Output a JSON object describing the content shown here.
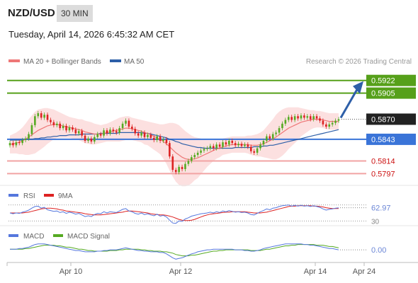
{
  "header": {
    "pair": "NZD/USD",
    "timeframe": "30 MIN",
    "datetime": "Tuesday, April 14, 2026 6:45:32 AM CET"
  },
  "legend_main": {
    "ma20": "MA 20 + Bollinger Bands",
    "ma50": "MA 50",
    "ma20_color": "#ee7777",
    "ma50_color": "#2d5fa8",
    "credit": "Research © 2026 Trading Central"
  },
  "legend_rsi": {
    "rsi": "RSI",
    "ma9": "9MA",
    "rsi_color": "#5577dd",
    "ma9_color": "#dd2222"
  },
  "legend_macd": {
    "macd": "MACD",
    "signal": "MACD Signal",
    "macd_color": "#5577dd",
    "signal_color": "#55aa22"
  },
  "colors": {
    "resistance": "#56a01a",
    "pivot": "#3a74d8",
    "support": "#f2a3a3",
    "support_label": "#cc1111",
    "arrow": "#2e5fa8",
    "candle_up": "#55aa22",
    "candle_down": "#dd2222",
    "band_fill": "#fbd6d6",
    "last_price_bg": "#222222"
  },
  "chart_data": [
    {
      "type": "candlestick",
      "title": "NZD/USD",
      "timeframe": "30 MIN",
      "x_ticks": [
        "Apr 10",
        "Apr 12",
        "Apr 14",
        "Apr 24"
      ],
      "ylim": [
        0.5785,
        0.5935
      ],
      "last_price": 0.587,
      "levels": {
        "resistance": [
          0.5922,
          0.5905
        ],
        "pivot": 0.5843,
        "support": [
          0.5814,
          0.5797
        ]
      },
      "close": [
        0.5838,
        0.5835,
        0.5839,
        0.5838,
        0.5842,
        0.5844,
        0.585,
        0.5862,
        0.5874,
        0.5878,
        0.5872,
        0.5876,
        0.5869,
        0.5866,
        0.5862,
        0.5864,
        0.5858,
        0.5861,
        0.5855,
        0.5859,
        0.5856,
        0.5851,
        0.5854,
        0.5848,
        0.5841,
        0.5844,
        0.584,
        0.5846,
        0.585,
        0.5848,
        0.5855,
        0.5851,
        0.5856,
        0.5854,
        0.5852,
        0.5858,
        0.5864,
        0.5868,
        0.586,
        0.5857,
        0.5851,
        0.5848,
        0.5852,
        0.5846,
        0.5849,
        0.5845,
        0.5842,
        0.5847,
        0.5841,
        0.5843,
        0.5838,
        0.582,
        0.5802,
        0.5799,
        0.5806,
        0.5803,
        0.581,
        0.5814,
        0.5819,
        0.5822,
        0.5825,
        0.5828,
        0.583,
        0.5831,
        0.5834,
        0.5831,
        0.5836,
        0.5833,
        0.5839,
        0.5836,
        0.5841,
        0.5838,
        0.5835,
        0.5837,
        0.5834,
        0.5836,
        0.5833,
        0.5827,
        0.5825,
        0.5831,
        0.5836,
        0.5841,
        0.5847,
        0.5844,
        0.585,
        0.5852,
        0.5858,
        0.5864,
        0.5869,
        0.5873,
        0.5869,
        0.5874,
        0.5871,
        0.5875,
        0.5872,
        0.5874,
        0.587,
        0.5874,
        0.5871,
        0.5868,
        0.5863,
        0.586,
        0.5863,
        0.5865,
        0.5868,
        0.587
      ],
      "ma20": [
        0.5836,
        0.5837,
        0.5838,
        0.5839,
        0.5841,
        0.5843,
        0.5846,
        0.5849,
        0.5852,
        0.5855,
        0.5857,
        0.5859,
        0.5861,
        0.5862,
        0.5863,
        0.5863,
        0.5862,
        0.5861,
        0.586,
        0.5859,
        0.5858,
        0.5857,
        0.5856,
        0.5855,
        0.5853,
        0.5852,
        0.5851,
        0.585,
        0.585,
        0.585,
        0.5851,
        0.5852,
        0.5853,
        0.5854,
        0.5855,
        0.5856,
        0.5857,
        0.5858,
        0.5858,
        0.5857,
        0.5856,
        0.5855,
        0.5854,
        0.5852,
        0.5851,
        0.5849,
        0.5847,
        0.5845,
        0.5843,
        0.584,
        0.5837,
        0.5833,
        0.5829,
        0.5825,
        0.5822,
        0.5819,
        0.5817,
        0.5816,
        0.5816,
        0.5817,
        0.5818,
        0.582,
        0.5822,
        0.5824,
        0.5826,
        0.5828,
        0.583,
        0.5831,
        0.5833,
        0.5834,
        0.5835,
        0.5836,
        0.5836,
        0.5836,
        0.5836,
        0.5836,
        0.5836,
        0.5835,
        0.5835,
        0.5835,
        0.5836,
        0.5837,
        0.5839,
        0.5841,
        0.5843,
        0.5846,
        0.5849,
        0.5852,
        0.5855,
        0.5858,
        0.586,
        0.5862,
        0.5864,
        0.5866,
        0.5867,
        0.5868,
        0.5869,
        0.587,
        0.587,
        0.587,
        0.5869,
        0.5868,
        0.5867,
        0.5867,
        0.5867,
        0.5867
      ],
      "ma50": [
        0.5842,
        0.5842,
        0.5842,
        0.5842,
        0.5842,
        0.5843,
        0.5843,
        0.5843,
        0.5844,
        0.5844,
        0.5845,
        0.5845,
        0.5846,
        0.5846,
        0.5847,
        0.5847,
        0.5848,
        0.5848,
        0.5848,
        0.5849,
        0.5849,
        0.5849,
        0.5849,
        0.585,
        0.585,
        0.585,
        0.585,
        0.585,
        0.585,
        0.5851,
        0.5851,
        0.5851,
        0.5851,
        0.5851,
        0.5851,
        0.5852,
        0.5852,
        0.5852,
        0.5852,
        0.5852,
        0.5852,
        0.5852,
        0.5852,
        0.5851,
        0.5851,
        0.585,
        0.5849,
        0.5848,
        0.5847,
        0.5846,
        0.5845,
        0.5843,
        0.5842,
        0.584,
        0.5839,
        0.5837,
        0.5836,
        0.5835,
        0.5834,
        0.5833,
        0.5832,
        0.5832,
        0.5831,
        0.5831,
        0.5831,
        0.5831,
        0.5831,
        0.5831,
        0.5831,
        0.5831,
        0.5831,
        0.5831,
        0.5832,
        0.5832,
        0.5832,
        0.5832,
        0.5832,
        0.5832,
        0.5833,
        0.5833,
        0.5833,
        0.5834,
        0.5834,
        0.5835,
        0.5835,
        0.5836,
        0.5837,
        0.5838,
        0.5839,
        0.584,
        0.5841,
        0.5842,
        0.5843,
        0.5844,
        0.5845,
        0.5846,
        0.5847,
        0.5848,
        0.5849,
        0.585,
        0.5851,
        0.5852,
        0.5853,
        0.5854,
        0.5855,
        0.5856
      ],
      "bb_width": [
        0.0012,
        0.0013,
        0.0014,
        0.0016,
        0.0018,
        0.0021,
        0.0024,
        0.0026,
        0.0028,
        0.0028,
        0.0027,
        0.0026,
        0.0024,
        0.0022,
        0.002,
        0.0018,
        0.0017,
        0.0016,
        0.0015,
        0.0014,
        0.0014,
        0.0014,
        0.0014,
        0.0015,
        0.0015,
        0.0015,
        0.0015,
        0.0014,
        0.0013,
        0.0012,
        0.0012,
        0.0012,
        0.0013,
        0.0014,
        0.0015,
        0.0016,
        0.0016,
        0.0016,
        0.0016,
        0.0015,
        0.0015,
        0.0015,
        0.0015,
        0.0016,
        0.0016,
        0.0017,
        0.0018,
        0.0019,
        0.002,
        0.0023,
        0.0027,
        0.0032,
        0.0036,
        0.0039,
        0.004,
        0.0039,
        0.0037,
        0.0035,
        0.0032,
        0.0029,
        0.0027,
        0.0024,
        0.0021,
        0.0018,
        0.0016,
        0.0014,
        0.0013,
        0.0012,
        0.0011,
        0.0011,
        0.0011,
        0.0011,
        0.0011,
        0.0011,
        0.0011,
        0.0011,
        0.0012,
        0.0013,
        0.0014,
        0.0015,
        0.0016,
        0.0018,
        0.0021,
        0.0024,
        0.0027,
        0.003,
        0.0031,
        0.0031,
        0.003,
        0.0028,
        0.0026,
        0.0024,
        0.0022,
        0.0019,
        0.0017,
        0.0015,
        0.0013,
        0.0012,
        0.0011,
        0.0011,
        0.0011,
        0.0011,
        0.0011,
        0.0011,
        0.0011,
        0.0011
      ]
    },
    {
      "type": "line",
      "name": "RSI",
      "last_value": 62.97,
      "reference_levels": [
        70,
        30
      ],
      "ylim": [
        20,
        80
      ],
      "rsi": [
        50,
        48,
        50,
        49,
        52,
        54,
        57,
        62,
        66,
        67,
        62,
        64,
        58,
        56,
        54,
        55,
        51,
        53,
        49,
        52,
        50,
        47,
        49,
        45,
        41,
        43,
        41,
        46,
        49,
        48,
        53,
        50,
        53,
        52,
        51,
        55,
        59,
        61,
        55,
        53,
        49,
        47,
        50,
        46,
        48,
        45,
        43,
        47,
        42,
        44,
        40,
        32,
        25,
        24,
        30,
        29,
        35,
        38,
        42,
        44,
        46,
        48,
        49,
        50,
        52,
        50,
        53,
        51,
        55,
        53,
        56,
        54,
        52,
        53,
        51,
        52,
        50,
        46,
        45,
        49,
        53,
        56,
        60,
        58,
        62,
        63,
        66,
        68,
        69,
        70,
        67,
        69,
        67,
        69,
        67,
        68,
        66,
        68,
        66,
        64,
        60,
        57,
        59,
        60,
        62,
        62.97
      ],
      "ma9": [
        50,
        50,
        50,
        50,
        50,
        51,
        52,
        54,
        56,
        58,
        60,
        61,
        62,
        62,
        61,
        60,
        58,
        57,
        55,
        54,
        53,
        52,
        51,
        50,
        48,
        47,
        46,
        45,
        45,
        45,
        46,
        47,
        48,
        49,
        50,
        51,
        52,
        54,
        55,
        55,
        54,
        53,
        52,
        51,
        50,
        48,
        47,
        46,
        45,
        45,
        44,
        42,
        40,
        37,
        34,
        32,
        31,
        31,
        32,
        34,
        37,
        40,
        43,
        45,
        47,
        48,
        49,
        50,
        51,
        52,
        52,
        53,
        53,
        53,
        53,
        53,
        52,
        51,
        50,
        50,
        50,
        51,
        52,
        54,
        56,
        58,
        60,
        62,
        64,
        66,
        67,
        67,
        68,
        68,
        68,
        68,
        68,
        67,
        67,
        66,
        65,
        63,
        62,
        61,
        61,
        61
      ]
    },
    {
      "type": "line",
      "name": "MACD",
      "last_value": 0.0,
      "ylim": [
        -0.0018,
        0.0014
      ],
      "macd": [
        0.0001,
        0.0001,
        0.0001,
        0.0002,
        0.0002,
        0.0003,
        0.0004,
        0.0006,
        0.0008,
        0.0009,
        0.0009,
        0.0009,
        0.0008,
        0.0007,
        0.0006,
        0.0005,
        0.0004,
        0.0003,
        0.0002,
        0.0001,
        0.0,
        -0.0001,
        -0.0001,
        -0.0002,
        -0.0003,
        -0.0003,
        -0.0003,
        -0.0003,
        -0.0002,
        -0.0002,
        -0.0001,
        -0.0001,
        0.0,
        0.0,
        0.0,
        0.0001,
        0.0002,
        0.0003,
        0.0002,
        0.0001,
        0.0,
        -0.0001,
        -0.0001,
        -0.0002,
        -0.0002,
        -0.0003,
        -0.0003,
        -0.0003,
        -0.0004,
        -0.0004,
        -0.0006,
        -0.0009,
        -0.0012,
        -0.0014,
        -0.0013,
        -0.0012,
        -0.001,
        -0.0008,
        -0.0006,
        -0.0005,
        -0.0003,
        -0.0002,
        -0.0001,
        0.0,
        0.0,
        0.0001,
        0.0001,
        0.0001,
        0.0001,
        0.0001,
        0.0001,
        0.0001,
        0.0,
        0.0,
        0.0,
        -0.0001,
        -0.0001,
        -0.0002,
        -0.0002,
        -0.0001,
        0.0,
        0.0002,
        0.0003,
        0.0004,
        0.0005,
        0.0006,
        0.0007,
        0.0008,
        0.0009,
        0.0009,
        0.0009,
        0.0009,
        0.0009,
        0.0009,
        0.0008,
        0.0008,
        0.0007,
        0.0007,
        0.0006,
        0.0005,
        0.0004,
        0.0003,
        0.0002,
        0.0002,
        0.0001,
        0.0
      ],
      "signal": [
        0.0001,
        0.0001,
        0.0001,
        0.0001,
        0.0001,
        0.0002,
        0.0002,
        0.0003,
        0.0004,
        0.0005,
        0.0006,
        0.0007,
        0.0007,
        0.0007,
        0.0007,
        0.0006,
        0.0006,
        0.0005,
        0.0004,
        0.0004,
        0.0003,
        0.0002,
        0.0001,
        0.0001,
        0.0,
        -0.0001,
        -0.0001,
        -0.0002,
        -0.0002,
        -0.0002,
        -0.0002,
        -0.0002,
        -0.0001,
        -0.0001,
        -0.0001,
        0.0,
        0.0,
        0.0001,
        0.0001,
        0.0001,
        0.0001,
        0.0001,
        0.0,
        0.0,
        -0.0001,
        -0.0001,
        -0.0002,
        -0.0002,
        -0.0002,
        -0.0003,
        -0.0003,
        -0.0004,
        -0.0005,
        -0.0007,
        -0.0008,
        -0.0009,
        -0.0009,
        -0.0009,
        -0.0008,
        -0.0008,
        -0.0007,
        -0.0006,
        -0.0005,
        -0.0004,
        -0.0003,
        -0.0002,
        -0.0002,
        -0.0001,
        -0.0001,
        0.0,
        0.0,
        0.0,
        0.0,
        0.0,
        0.0,
        0.0,
        0.0,
        -0.0001,
        -0.0001,
        -0.0001,
        -0.0001,
        0.0,
        0.0001,
        0.0001,
        0.0002,
        0.0003,
        0.0004,
        0.0005,
        0.0006,
        0.0006,
        0.0007,
        0.0007,
        0.0008,
        0.0008,
        0.0008,
        0.0008,
        0.0008,
        0.0008,
        0.0007,
        0.0007,
        0.0007,
        0.0006,
        0.0005,
        0.0005,
        0.0004,
        0.0003
      ]
    }
  ]
}
